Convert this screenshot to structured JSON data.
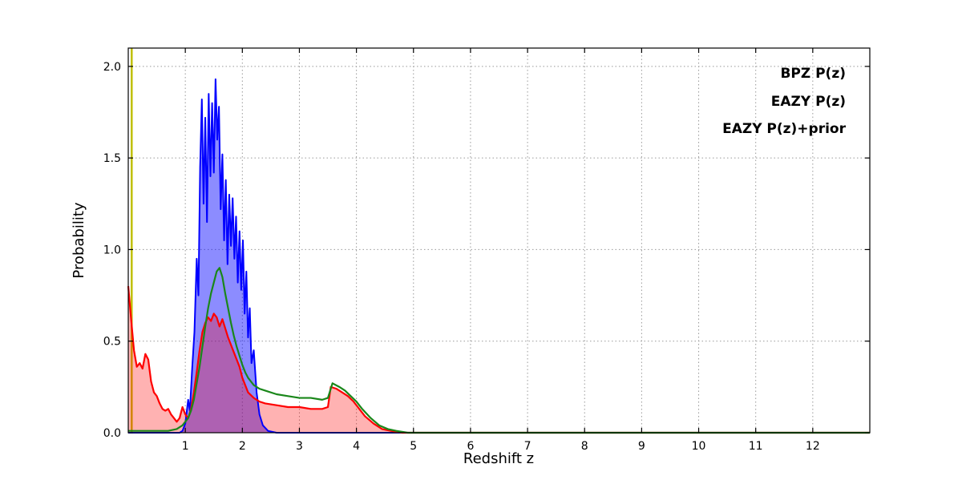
{
  "chart_data": {
    "type": "line",
    "title": "",
    "xlabel": "Redshift z",
    "ylabel": "Probability",
    "xlim": [
      0,
      13
    ],
    "ylim": [
      0,
      2.1
    ],
    "xticks": [
      1,
      2,
      3,
      4,
      5,
      6,
      7,
      8,
      9,
      10,
      11,
      12
    ],
    "xtick_labels": [
      "1",
      "2",
      "3",
      "4",
      "5",
      "6",
      "7",
      "8",
      "9",
      "10",
      "11",
      "12"
    ],
    "yticks": [
      0.0,
      0.5,
      1.0,
      1.5,
      2.0
    ],
    "ytick_labels": [
      "0.0",
      "0.5",
      "1.0",
      "1.5",
      "2.0"
    ],
    "grid": "dotted",
    "grid_color": "#999999",
    "spine_color": "#000000",
    "background": "#ffffff",
    "legend_position": "top-right",
    "annotations": [
      {
        "type": "vline",
        "name": "spec-z-marker",
        "x": 0.06,
        "color": "#bfbf00",
        "width": 2.5
      }
    ],
    "series": [
      {
        "name": "BPZ P(z)",
        "color": "#0000ff",
        "fill": "rgba(0,0,255,0.45)",
        "line_width": 2,
        "points": [
          [
            0,
            0
          ],
          [
            0.9,
            0
          ],
          [
            0.95,
            0.01
          ],
          [
            1.0,
            0.05
          ],
          [
            1.05,
            0.18
          ],
          [
            1.08,
            0.12
          ],
          [
            1.12,
            0.35
          ],
          [
            1.16,
            0.55
          ],
          [
            1.2,
            0.95
          ],
          [
            1.23,
            0.75
          ],
          [
            1.26,
            1.45
          ],
          [
            1.29,
            1.82
          ],
          [
            1.32,
            1.25
          ],
          [
            1.35,
            1.72
          ],
          [
            1.38,
            1.15
          ],
          [
            1.41,
            1.85
          ],
          [
            1.44,
            1.4
          ],
          [
            1.47,
            1.8
          ],
          [
            1.5,
            1.42
          ],
          [
            1.53,
            1.93
          ],
          [
            1.56,
            1.6
          ],
          [
            1.59,
            1.78
          ],
          [
            1.62,
            1.22
          ],
          [
            1.65,
            1.52
          ],
          [
            1.68,
            1.05
          ],
          [
            1.71,
            1.38
          ],
          [
            1.74,
            0.92
          ],
          [
            1.77,
            1.3
          ],
          [
            1.8,
            1.02
          ],
          [
            1.83,
            1.28
          ],
          [
            1.86,
            0.95
          ],
          [
            1.89,
            1.18
          ],
          [
            1.92,
            0.82
          ],
          [
            1.95,
            1.1
          ],
          [
            1.98,
            0.78
          ],
          [
            2.01,
            1.05
          ],
          [
            2.04,
            0.65
          ],
          [
            2.07,
            0.88
          ],
          [
            2.1,
            0.52
          ],
          [
            2.13,
            0.68
          ],
          [
            2.16,
            0.38
          ],
          [
            2.2,
            0.45
          ],
          [
            2.25,
            0.22
          ],
          [
            2.3,
            0.1
          ],
          [
            2.36,
            0.04
          ],
          [
            2.45,
            0.01
          ],
          [
            2.6,
            0
          ],
          [
            13,
            0
          ]
        ]
      },
      {
        "name": "EAZY P(z)",
        "color": "#ff0000",
        "fill": "rgba(255,0,0,0.3)",
        "line_width": 2.2,
        "points": [
          [
            0,
            0.8
          ],
          [
            0.05,
            0.62
          ],
          [
            0.1,
            0.45
          ],
          [
            0.15,
            0.36
          ],
          [
            0.2,
            0.38
          ],
          [
            0.25,
            0.35
          ],
          [
            0.3,
            0.43
          ],
          [
            0.35,
            0.4
          ],
          [
            0.4,
            0.28
          ],
          [
            0.45,
            0.22
          ],
          [
            0.5,
            0.2
          ],
          [
            0.55,
            0.16
          ],
          [
            0.6,
            0.13
          ],
          [
            0.65,
            0.12
          ],
          [
            0.7,
            0.13
          ],
          [
            0.75,
            0.1
          ],
          [
            0.8,
            0.08
          ],
          [
            0.85,
            0.06
          ],
          [
            0.9,
            0.08
          ],
          [
            0.95,
            0.14
          ],
          [
            1.0,
            0.1
          ],
          [
            1.05,
            0.08
          ],
          [
            1.1,
            0.13
          ],
          [
            1.15,
            0.22
          ],
          [
            1.2,
            0.33
          ],
          [
            1.25,
            0.45
          ],
          [
            1.3,
            0.55
          ],
          [
            1.35,
            0.6
          ],
          [
            1.4,
            0.63
          ],
          [
            1.45,
            0.61
          ],
          [
            1.5,
            0.65
          ],
          [
            1.55,
            0.63
          ],
          [
            1.6,
            0.58
          ],
          [
            1.65,
            0.62
          ],
          [
            1.7,
            0.57
          ],
          [
            1.75,
            0.52
          ],
          [
            1.8,
            0.48
          ],
          [
            1.85,
            0.44
          ],
          [
            1.9,
            0.4
          ],
          [
            1.95,
            0.36
          ],
          [
            2.0,
            0.3
          ],
          [
            2.05,
            0.26
          ],
          [
            2.1,
            0.22
          ],
          [
            2.2,
            0.19
          ],
          [
            2.3,
            0.17
          ],
          [
            2.4,
            0.16
          ],
          [
            2.6,
            0.15
          ],
          [
            2.8,
            0.14
          ],
          [
            3.0,
            0.14
          ],
          [
            3.2,
            0.13
          ],
          [
            3.4,
            0.13
          ],
          [
            3.5,
            0.14
          ],
          [
            3.55,
            0.25
          ],
          [
            3.65,
            0.24
          ],
          [
            3.75,
            0.22
          ],
          [
            3.85,
            0.2
          ],
          [
            3.95,
            0.17
          ],
          [
            4.05,
            0.13
          ],
          [
            4.15,
            0.09
          ],
          [
            4.3,
            0.05
          ],
          [
            4.45,
            0.02
          ],
          [
            4.6,
            0.01
          ],
          [
            4.8,
            0
          ],
          [
            13,
            0
          ]
        ]
      },
      {
        "name": "EAZY P(z)+prior",
        "color": "#1a871a",
        "fill": "none",
        "line_width": 2.2,
        "points": [
          [
            0,
            0.01
          ],
          [
            0.3,
            0.01
          ],
          [
            0.5,
            0.01
          ],
          [
            0.7,
            0.01
          ],
          [
            0.85,
            0.02
          ],
          [
            0.95,
            0.04
          ],
          [
            1.05,
            0.08
          ],
          [
            1.1,
            0.12
          ],
          [
            1.15,
            0.18
          ],
          [
            1.2,
            0.27
          ],
          [
            1.25,
            0.36
          ],
          [
            1.3,
            0.47
          ],
          [
            1.35,
            0.58
          ],
          [
            1.4,
            0.68
          ],
          [
            1.45,
            0.76
          ],
          [
            1.5,
            0.82
          ],
          [
            1.55,
            0.88
          ],
          [
            1.6,
            0.9
          ],
          [
            1.65,
            0.85
          ],
          [
            1.7,
            0.76
          ],
          [
            1.75,
            0.68
          ],
          [
            1.8,
            0.6
          ],
          [
            1.85,
            0.53
          ],
          [
            1.9,
            0.47
          ],
          [
            1.95,
            0.42
          ],
          [
            2.0,
            0.37
          ],
          [
            2.05,
            0.33
          ],
          [
            2.1,
            0.3
          ],
          [
            2.2,
            0.26
          ],
          [
            2.3,
            0.24
          ],
          [
            2.4,
            0.23
          ],
          [
            2.6,
            0.21
          ],
          [
            2.8,
            0.2
          ],
          [
            3.0,
            0.19
          ],
          [
            3.2,
            0.19
          ],
          [
            3.4,
            0.18
          ],
          [
            3.5,
            0.19
          ],
          [
            3.58,
            0.27
          ],
          [
            3.7,
            0.25
          ],
          [
            3.8,
            0.23
          ],
          [
            3.9,
            0.2
          ],
          [
            4.0,
            0.17
          ],
          [
            4.1,
            0.13
          ],
          [
            4.25,
            0.08
          ],
          [
            4.4,
            0.04
          ],
          [
            4.55,
            0.02
          ],
          [
            4.7,
            0.01
          ],
          [
            4.9,
            0
          ],
          [
            13,
            0
          ]
        ]
      }
    ]
  }
}
